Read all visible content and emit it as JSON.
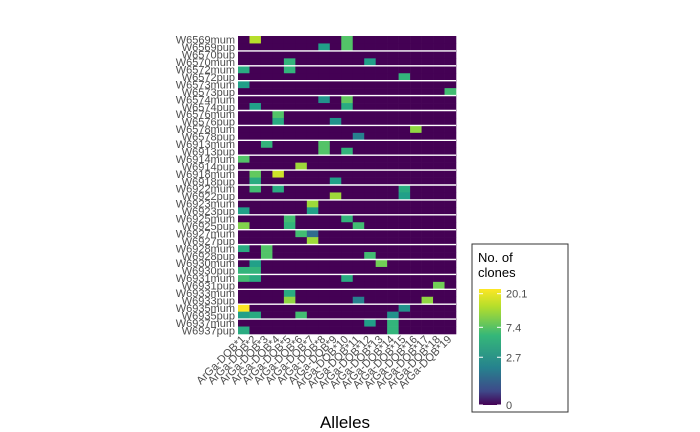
{
  "chart_data": {
    "type": "heatmap",
    "xlabel": "Alleles",
    "ylabel": "",
    "x": [
      "ArGa-DQB*1",
      "ArGa-DQB*2",
      "ArGa-DQB*3",
      "ArGa-DQB*4",
      "ArGa-DQB*5",
      "ArGa-DQB*6",
      "ArGa-DQB*7",
      "ArGa-DQB*8",
      "ArGa-DQB*9",
      "ArGa-DQB*10",
      "ArGa-DQB*11",
      "ArGa-DQB*12",
      "ArGa-DQB*13",
      "ArGa-DQB*14",
      "ArGa-DQB*15",
      "ArGa-DQB*16",
      "ArGa-DQB*17",
      "ArGa-DQB*18",
      "ArGa-DQB*19"
    ],
    "y": [
      "W6569mum",
      "W6569pup",
      "W6570pup",
      "W6570mum",
      "W6572mum",
      "W6572pup",
      "W6573mum",
      "W6573pup",
      "W6574mum",
      "W6574pup",
      "W6576mum",
      "W6576pup",
      "W6578mum",
      "W6578pup",
      "W6913mum",
      "W6913pup",
      "W6914mum",
      "W6914pup",
      "W6918mum",
      "W6918pup",
      "W6922mum",
      "W6922pup",
      "W6923mum",
      "W6923pup",
      "W6925mum",
      "W6925pup",
      "W6927mum",
      "W6927pup",
      "W6928mum",
      "W6928pup",
      "W6930mum",
      "W6930pup",
      "W6931mum",
      "W6931pup",
      "W6933mum",
      "W6933pup",
      "W6935mum",
      "W6935pup",
      "W6937mum",
      "W6937pup"
    ],
    "legend_title": "No. of clones",
    "legend_ticks": [
      "20.1",
      "7.4",
      "2.7",
      "0"
    ],
    "legend_values": [
      20.1,
      7.4,
      2.7,
      0
    ],
    "legend_max": 23,
    "legend_position": "right",
    "colors": {
      "low": "#440154",
      "high": "#fde725",
      "palette": [
        "#440154",
        "#482878",
        "#3e4989",
        "#31688e",
        "#26828e",
        "#1f9e89",
        "#35b779",
        "#6ece58",
        "#b5de2b",
        "#fde725"
      ]
    },
    "z": [
      [
        0,
        16,
        0,
        0,
        0,
        0,
        0,
        0,
        0,
        9,
        0,
        0,
        0,
        0,
        0,
        0,
        0,
        0,
        0
      ],
      [
        0,
        0,
        0,
        0,
        0,
        0,
        0,
        5,
        0,
        9,
        0,
        0,
        0,
        0,
        0,
        0,
        0,
        0,
        0
      ],
      [
        0,
        0,
        0,
        0,
        0,
        0,
        0,
        0,
        0,
        0,
        0,
        0,
        0,
        0,
        0,
        0,
        0,
        0,
        0
      ],
      [
        0,
        0,
        0,
        0,
        7,
        0,
        0,
        0,
        0,
        0,
        0,
        5,
        0,
        0,
        0,
        0,
        0,
        0,
        0
      ],
      [
        6,
        0,
        0,
        0,
        7,
        0,
        0,
        0,
        0,
        0,
        0,
        0,
        0,
        0,
        0,
        0,
        0,
        0,
        0
      ],
      [
        0,
        0,
        0,
        0,
        0,
        0,
        0,
        0,
        0,
        0,
        0,
        0,
        0,
        0,
        7,
        0,
        0,
        0,
        0
      ],
      [
        5,
        0,
        0,
        0,
        0,
        0,
        0,
        0,
        0,
        0,
        0,
        0,
        0,
        0,
        0,
        0,
        0,
        0,
        0
      ],
      [
        0,
        0,
        0,
        0,
        0,
        0,
        0,
        0,
        0,
        0,
        0,
        0,
        0,
        0,
        0,
        0,
        0,
        0,
        8
      ],
      [
        0,
        0,
        0,
        0,
        0,
        0,
        0,
        4,
        0,
        10,
        0,
        0,
        0,
        0,
        0,
        0,
        0,
        0,
        0
      ],
      [
        0,
        5,
        0,
        0,
        0,
        0,
        0,
        0,
        0,
        6,
        0,
        0,
        0,
        0,
        0,
        0,
        0,
        0,
        0
      ],
      [
        0,
        0,
        0,
        9,
        0,
        0,
        0,
        0,
        0,
        0,
        0,
        0,
        0,
        0,
        0,
        0,
        0,
        0,
        0
      ],
      [
        0,
        0,
        0,
        6,
        0,
        0,
        0,
        0,
        4,
        0,
        0,
        0,
        0,
        0,
        0,
        0,
        0,
        0,
        0
      ],
      [
        0,
        0,
        0,
        0,
        0,
        0,
        0,
        0,
        0,
        0,
        0,
        0,
        0,
        0,
        0,
        13,
        0,
        0,
        0
      ],
      [
        0,
        0,
        0,
        0,
        0,
        0,
        0,
        0,
        0,
        0,
        3,
        0,
        0,
        0,
        0,
        0,
        0,
        0,
        0
      ],
      [
        0,
        0,
        7,
        0,
        0,
        0,
        0,
        9,
        0,
        0,
        0,
        0,
        0,
        0,
        0,
        0,
        0,
        0,
        0
      ],
      [
        0,
        0,
        0,
        0,
        0,
        0,
        0,
        9,
        0,
        7,
        0,
        0,
        0,
        0,
        0,
        0,
        0,
        0,
        0
      ],
      [
        9,
        0,
        0,
        0,
        0,
        0,
        0,
        0,
        0,
        0,
        0,
        0,
        0,
        0,
        0,
        0,
        0,
        0,
        0
      ],
      [
        0,
        0,
        0,
        0,
        0,
        14,
        0,
        0,
        0,
        0,
        0,
        0,
        0,
        0,
        0,
        0,
        0,
        0,
        0
      ],
      [
        0,
        10,
        0,
        18,
        0,
        0,
        0,
        0,
        0,
        0,
        0,
        0,
        0,
        0,
        0,
        0,
        0,
        0,
        0
      ],
      [
        0,
        6,
        0,
        0,
        0,
        0,
        0,
        0,
        5,
        0,
        0,
        0,
        0,
        0,
        0,
        0,
        0,
        0,
        0
      ],
      [
        0,
        8,
        0,
        6,
        0,
        0,
        0,
        0,
        0,
        0,
        0,
        0,
        0,
        0,
        6,
        0,
        0,
        0,
        0
      ],
      [
        0,
        0,
        0,
        0,
        0,
        0,
        0,
        0,
        14,
        0,
        0,
        0,
        0,
        0,
        5,
        0,
        0,
        0,
        0
      ],
      [
        0,
        0,
        0,
        0,
        0,
        0,
        14,
        0,
        0,
        0,
        0,
        0,
        0,
        0,
        0,
        0,
        0,
        0,
        0
      ],
      [
        5,
        0,
        0,
        0,
        0,
        0,
        5,
        0,
        0,
        0,
        0,
        0,
        0,
        0,
        0,
        0,
        0,
        0,
        0
      ],
      [
        0,
        0,
        0,
        0,
        8,
        0,
        0,
        0,
        0,
        7,
        0,
        0,
        0,
        0,
        0,
        0,
        0,
        0,
        0
      ],
      [
        12,
        0,
        0,
        0,
        7,
        0,
        0,
        0,
        0,
        0,
        8,
        0,
        0,
        0,
        0,
        0,
        0,
        0,
        0
      ],
      [
        0,
        0,
        0,
        0,
        0,
        8,
        2,
        0,
        0,
        0,
        0,
        0,
        0,
        0,
        0,
        0,
        0,
        0,
        0
      ],
      [
        0,
        0,
        0,
        0,
        0,
        0,
        14,
        0,
        0,
        0,
        0,
        0,
        0,
        0,
        0,
        0,
        0,
        0,
        0
      ],
      [
        6,
        0,
        9,
        0,
        0,
        0,
        0,
        0,
        0,
        0,
        0,
        0,
        0,
        0,
        0,
        0,
        0,
        0,
        0
      ],
      [
        0,
        0,
        9,
        0,
        0,
        0,
        0,
        0,
        0,
        0,
        0,
        8,
        0,
        0,
        0,
        0,
        0,
        0,
        0
      ],
      [
        0,
        5,
        0,
        0,
        0,
        0,
        0,
        0,
        0,
        0,
        0,
        0,
        11,
        0,
        0,
        0,
        0,
        0,
        0
      ],
      [
        7,
        7,
        0,
        0,
        0,
        0,
        0,
        0,
        0,
        0,
        0,
        0,
        0,
        0,
        0,
        0,
        0,
        0,
        0
      ],
      [
        8,
        6,
        0,
        0,
        0,
        0,
        0,
        0,
        0,
        6,
        0,
        0,
        0,
        0,
        0,
        0,
        0,
        0,
        0
      ],
      [
        0,
        0,
        0,
        0,
        0,
        0,
        0,
        0,
        0,
        0,
        0,
        0,
        0,
        0,
        0,
        0,
        0,
        11,
        0
      ],
      [
        0,
        0,
        0,
        0,
        6,
        0,
        0,
        0,
        0,
        0,
        0,
        0,
        0,
        0,
        0,
        0,
        0,
        0,
        0
      ],
      [
        0,
        0,
        0,
        0,
        13,
        0,
        0,
        0,
        0,
        0,
        3,
        0,
        0,
        0,
        0,
        0,
        13,
        0,
        0
      ],
      [
        23,
        0,
        0,
        0,
        0,
        0,
        0,
        0,
        0,
        0,
        0,
        0,
        0,
        0,
        4,
        0,
        0,
        0,
        0
      ],
      [
        5,
        6,
        0,
        0,
        0,
        8,
        0,
        0,
        0,
        0,
        0,
        0,
        0,
        4,
        0,
        0,
        0,
        0,
        0
      ],
      [
        0,
        0,
        0,
        0,
        0,
        0,
        0,
        0,
        0,
        0,
        0,
        5,
        0,
        7,
        0,
        0,
        0,
        0,
        0
      ],
      [
        6,
        0,
        0,
        0,
        0,
        0,
        0,
        0,
        0,
        0,
        0,
        0,
        0,
        7,
        0,
        0,
        0,
        0,
        0
      ]
    ]
  }
}
